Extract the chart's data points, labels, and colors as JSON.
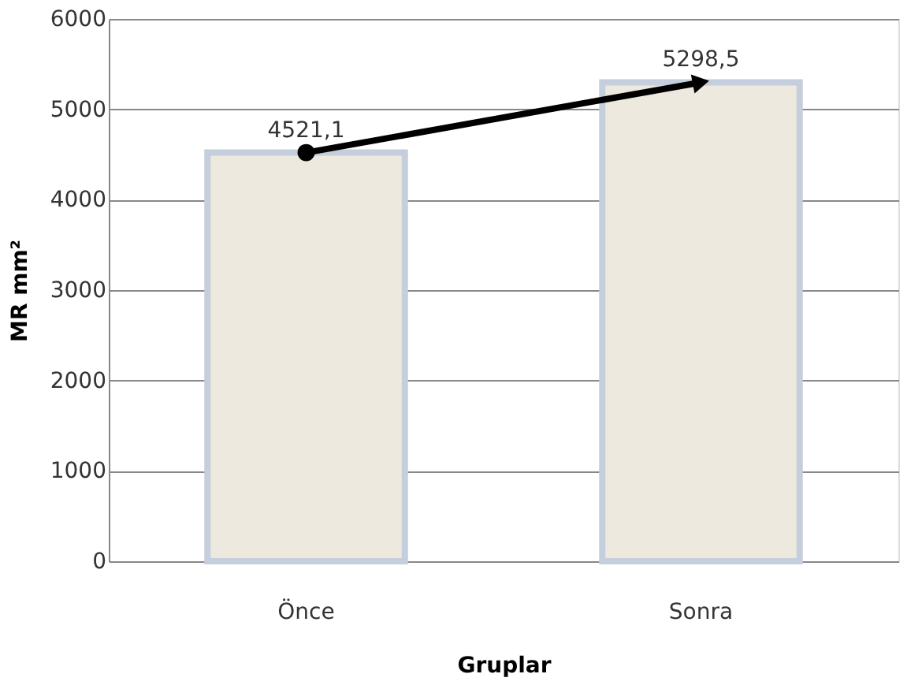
{
  "chart_data": {
    "type": "bar",
    "xlabel": "Gruplar",
    "ylabel": "MR mm²",
    "categories": [
      "Önce",
      "Sonra"
    ],
    "series": [
      {
        "color": "#ede9df",
        "values": [
          4521.1,
          5298.5
        ],
        "value_labels": [
          "4521,1",
          "5298,5"
        ]
      },
      {
        "type": "line",
        "color": "#000000",
        "values": [
          4521.1,
          5298.5
        ],
        "marker": "circle"
      }
    ],
    "ylim": [
      0,
      6000
    ],
    "yticks": [
      0,
      1000,
      2000,
      3000,
      4000,
      5000,
      6000
    ],
    "grid": "y"
  }
}
